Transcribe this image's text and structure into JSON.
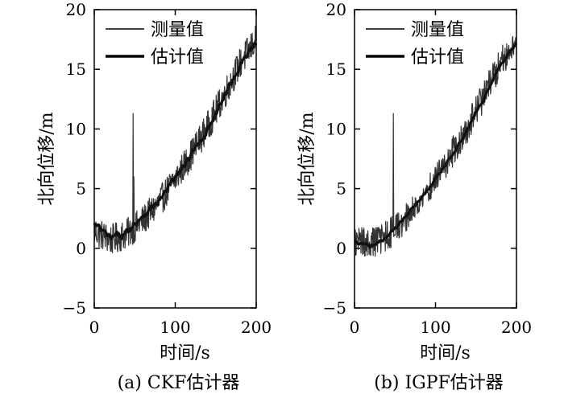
{
  "chart_data": [
    {
      "type": "line",
      "caption": "(a) CKF估计器",
      "xlabel": "时间/s",
      "ylabel": "北向位移/m",
      "xlim": [
        0,
        200
      ],
      "ylim": [
        -5,
        20
      ],
      "xticks": [
        0,
        100,
        200
      ],
      "yticks": [
        -5,
        0,
        5,
        10,
        15,
        20
      ],
      "legend_position": "top-left",
      "legend": [
        "测量值",
        "估计值"
      ],
      "series": [
        {
          "name": "测量值",
          "style": "thin",
          "trend_x": [
            0,
            20,
            40,
            60,
            80,
            100,
            120,
            140,
            160,
            180,
            200
          ],
          "trend_y": [
            1.5,
            0.7,
            1.2,
            2.3,
            3.8,
            5.8,
            7.9,
            10.2,
            12.8,
            15.5,
            17.5
          ],
          "noise_amplitude": 1.3,
          "spikes": [
            {
              "x": 48,
              "y": 11.3
            },
            {
              "x": 48.8,
              "y": 6.0
            }
          ]
        },
        {
          "name": "估计值",
          "style": "thick",
          "trend_x": [
            0,
            20,
            40,
            60,
            80,
            100,
            120,
            140,
            160,
            180,
            200
          ],
          "trend_y": [
            2.0,
            0.8,
            1.3,
            2.8,
            3.9,
            5.9,
            7.8,
            10.0,
            12.6,
            15.4,
            17.3
          ],
          "noise_amplitude": 0.55
        }
      ]
    },
    {
      "type": "line",
      "caption": "(b) IGPF估计器",
      "xlabel": "时间/s",
      "ylabel": "北向位移/m",
      "xlim": [
        0,
        200
      ],
      "ylim": [
        -5,
        20
      ],
      "xticks": [
        0,
        100,
        200
      ],
      "yticks": [
        -5,
        0,
        5,
        10,
        15,
        20
      ],
      "legend_position": "top-left",
      "legend": [
        "测量值",
        "估计值"
      ],
      "series": [
        {
          "name": "测量值",
          "style": "thin",
          "trend_x": [
            0,
            20,
            40,
            60,
            80,
            100,
            120,
            140,
            160,
            180,
            200
          ],
          "trend_y": [
            0.5,
            0.4,
            1.0,
            2.3,
            3.8,
            5.8,
            7.9,
            10.2,
            12.8,
            15.5,
            17.5
          ],
          "noise_amplitude": 1.3,
          "spikes": [
            {
              "x": 48,
              "y": 11.3
            }
          ]
        },
        {
          "name": "估计值",
          "style": "thick",
          "trend_x": [
            0,
            20,
            40,
            60,
            80,
            100,
            120,
            140,
            160,
            180,
            200
          ],
          "trend_y": [
            0.5,
            0.2,
            0.9,
            2.4,
            3.9,
            5.8,
            7.8,
            10.0,
            12.6,
            15.3,
            17.2
          ],
          "noise_amplitude": 0.25
        }
      ]
    }
  ]
}
